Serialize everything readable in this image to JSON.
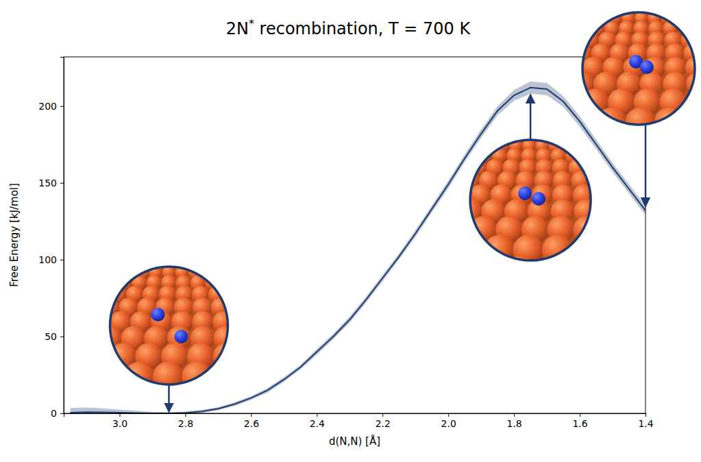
{
  "chart_data": {
    "type": "line",
    "title": "2N* recombination, T = 700 K",
    "x_label": "d(N,N) [Å]",
    "y_label": "Free Energy [kJ/mol]",
    "x": [
      3.15,
      3.1,
      3.05,
      3.0,
      2.95,
      2.9,
      2.85,
      2.8,
      2.75,
      2.7,
      2.65,
      2.6,
      2.55,
      2.5,
      2.45,
      2.4,
      2.35,
      2.3,
      2.25,
      2.2,
      2.15,
      2.1,
      2.05,
      2.0,
      1.95,
      1.9,
      1.85,
      1.8,
      1.75,
      1.7,
      1.65,
      1.6,
      1.55,
      1.5,
      1.45,
      1.4
    ],
    "series": [
      {
        "color": "#1f3a6e",
        "values": [
          0.5,
          0.8,
          0.7,
          0.4,
          0.2,
          0.05,
          0,
          0.3,
          1.2,
          3,
          6,
          10,
          15,
          22,
          30,
          40,
          50,
          61,
          74,
          88,
          102,
          117,
          133,
          149,
          166,
          182,
          197,
          207,
          212,
          211,
          203,
          190,
          175,
          160,
          146,
          132
        ],
        "error": [
          3,
          3,
          2.5,
          2,
          1.5,
          1,
          0.8,
          0.8,
          1,
          1,
          1.2,
          1.2,
          1.5,
          1.5,
          1.5,
          1.8,
          1.8,
          2,
          2,
          2,
          2,
          2.2,
          2.2,
          2.5,
          2.5,
          2.8,
          3,
          3.5,
          4,
          4,
          3.5,
          3.5,
          3,
          3,
          3,
          3
        ]
      }
    ],
    "xlim": [
      3.17,
      1.4
    ],
    "ylim": [
      0,
      232
    ],
    "xticks": [
      {
        "value": 3,
        "label": "3.0"
      },
      2.8,
      2.6,
      2.4,
      2.2,
      {
        "value": 2,
        "label": "2.0"
      },
      1.8,
      1.6,
      1.4
    ],
    "yticks": [
      0,
      50,
      100,
      150,
      200
    ],
    "grid": false
  }
}
